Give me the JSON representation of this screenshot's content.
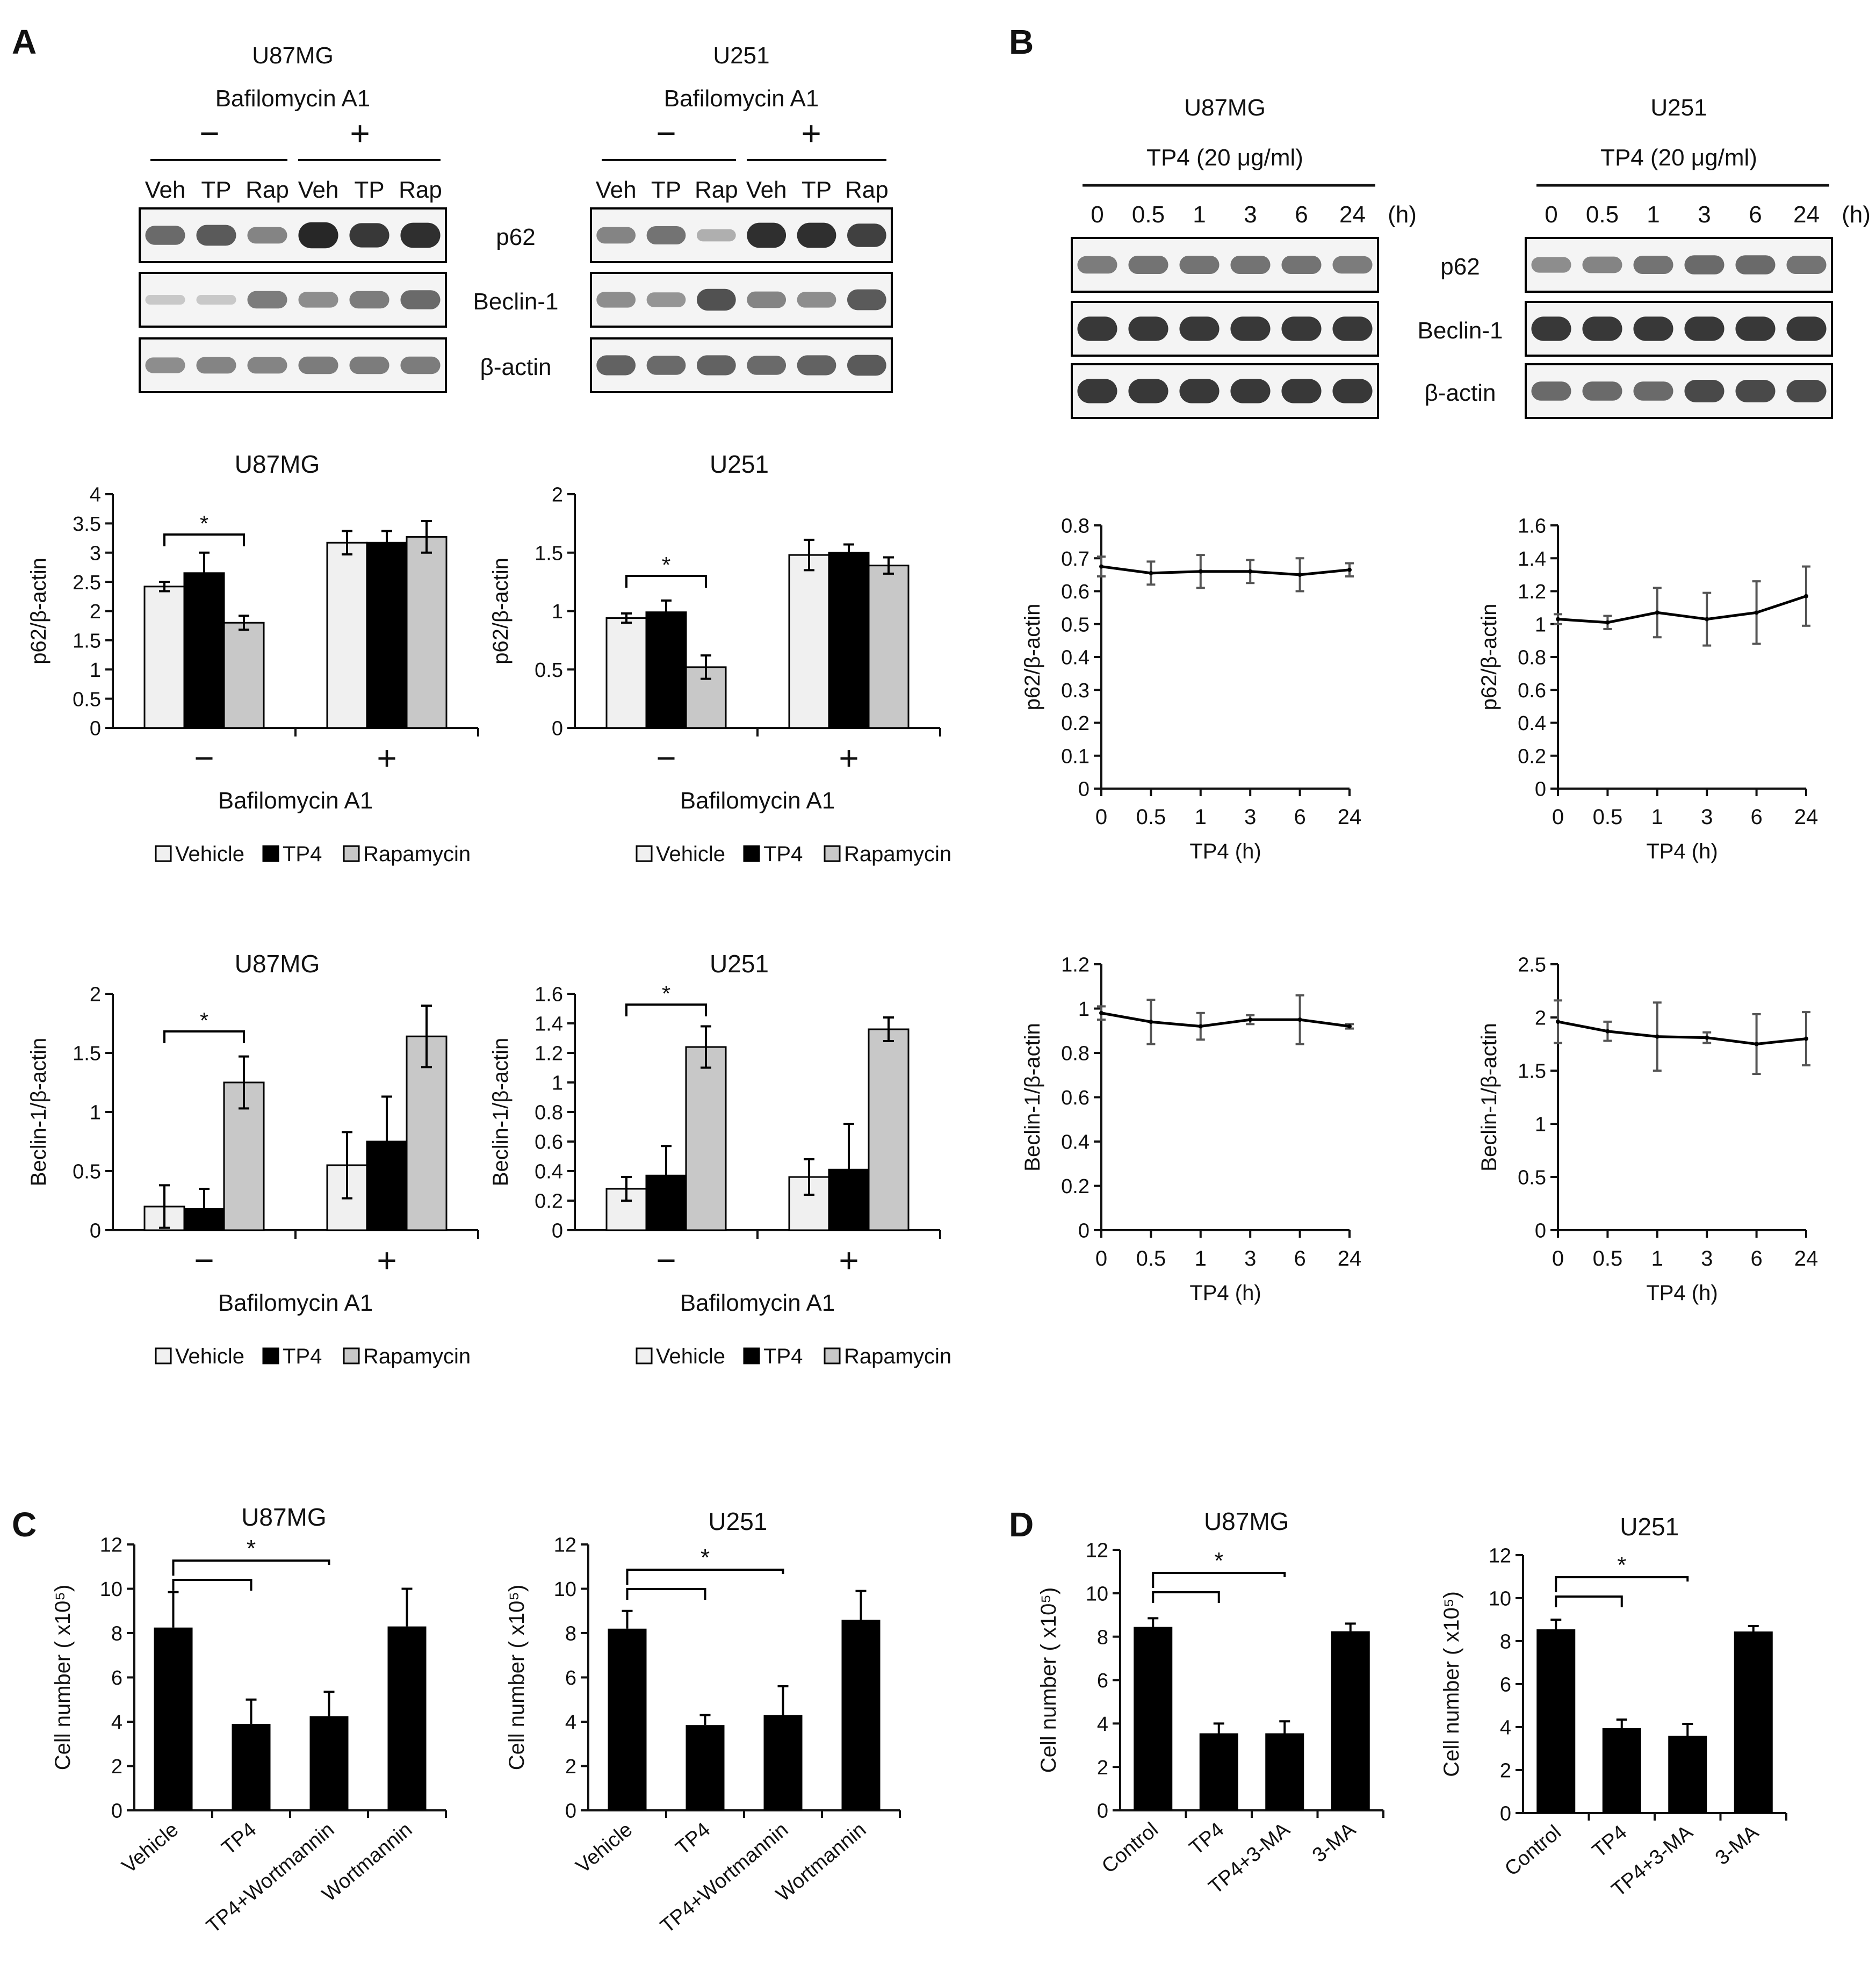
{
  "panel_letters": [
    "A",
    "B",
    "C",
    "D"
  ],
  "blots": {
    "A": [
      {
        "cell": "U87MG",
        "treatment": "Bafilomycin A1",
        "minus": "−",
        "plus": "+",
        "lanes": [
          "Veh",
          "TP",
          "Rap",
          "Veh",
          "TP",
          "Rap"
        ],
        "rows": [
          "p62",
          "Beclin-1",
          "β-actin"
        ]
      },
      {
        "cell": "U251",
        "treatment": "Bafilomycin A1",
        "minus": "−",
        "plus": "+",
        "lanes": [
          "Veh",
          "TP",
          "Rap",
          "Veh",
          "TP",
          "Rap"
        ],
        "rows": []
      }
    ],
    "B": [
      {
        "cell": "U87MG",
        "treatment": "TP4 (20 μg/ml)",
        "lanes": [
          "0",
          "0.5",
          "1",
          "3",
          "6",
          "24"
        ],
        "unit": "(h)",
        "rows": []
      },
      {
        "cell": "U251",
        "treatment": "TP4 (20 μg/ml)",
        "lanes": [
          "0",
          "0.5",
          "1",
          "3",
          "6",
          "24"
        ],
        "unit": "(h)",
        "rows": [
          "p62",
          "Beclin-1",
          "β-actin"
        ]
      }
    ]
  },
  "chart_data": [
    {
      "id": "A1",
      "type": "bar",
      "title": "U87MG",
      "ylabel": "p62/β-actin",
      "xlabel": "Bafilomycin A1",
      "categories": [
        "−",
        "+"
      ],
      "ylim": [
        0,
        4
      ],
      "yticks": [
        "0",
        "0.5",
        "1",
        "1.5",
        "2",
        "2.5",
        "3",
        "3.5",
        "4"
      ],
      "series": [
        {
          "name": "Vehicle",
          "values": [
            2.42,
            3.17
          ],
          "errors": [
            0.08,
            0.2
          ]
        },
        {
          "name": "TP4",
          "values": [
            2.65,
            3.17
          ],
          "errors": [
            0.35,
            0.2
          ]
        },
        {
          "name": "Rapamycin",
          "values": [
            1.8,
            3.27
          ],
          "errors": [
            0.12,
            0.27
          ]
        }
      ],
      "significance": "*",
      "legend": [
        "Vehicle",
        "TP4",
        "Rapamycin"
      ]
    },
    {
      "id": "A2",
      "type": "bar",
      "title": "U251",
      "ylabel": "p62/β-actin",
      "xlabel": "Bafilomycin A1",
      "categories": [
        "−",
        "+"
      ],
      "ylim": [
        0,
        2
      ],
      "yticks": [
        "0",
        "0.5",
        "1",
        "1.5",
        "2"
      ],
      "series": [
        {
          "name": "Vehicle",
          "values": [
            0.94,
            1.48
          ],
          "errors": [
            0.04,
            0.13
          ]
        },
        {
          "name": "TP4",
          "values": [
            0.99,
            1.5
          ],
          "errors": [
            0.1,
            0.07
          ]
        },
        {
          "name": "Rapamycin",
          "values": [
            0.52,
            1.39
          ],
          "errors": [
            0.1,
            0.07
          ]
        }
      ],
      "significance": "*",
      "legend": [
        "Vehicle",
        "TP4",
        "Rapamycin"
      ]
    },
    {
      "id": "A3",
      "type": "bar",
      "title": "U87MG",
      "ylabel": "Beclin-1/β-actin",
      "xlabel": "Bafilomycin A1",
      "categories": [
        "−",
        "+"
      ],
      "ylim": [
        0,
        2
      ],
      "yticks": [
        "0",
        "0.5",
        "1",
        "1.5",
        "2"
      ],
      "series": [
        {
          "name": "Vehicle",
          "values": [
            0.2,
            0.55
          ],
          "errors": [
            0.18,
            0.28
          ]
        },
        {
          "name": "TP4",
          "values": [
            0.18,
            0.75
          ],
          "errors": [
            0.17,
            0.38
          ]
        },
        {
          "name": "Rapamycin",
          "values": [
            1.25,
            1.64
          ],
          "errors": [
            0.22,
            0.26
          ]
        }
      ],
      "significance": "*",
      "legend": [
        "Vehicle",
        "TP4",
        "Rapamycin"
      ]
    },
    {
      "id": "A4",
      "type": "bar",
      "title": "U251",
      "ylabel": "Beclin-1/β-actin",
      "xlabel": "Bafilomycin A1",
      "categories": [
        "−",
        "+"
      ],
      "ylim": [
        0,
        1.6
      ],
      "yticks": [
        "0",
        "0.2",
        "0.4",
        "0.6",
        "0.8",
        "1",
        "1.2",
        "1.4",
        "1.6"
      ],
      "series": [
        {
          "name": "Vehicle",
          "values": [
            0.28,
            0.36
          ],
          "errors": [
            0.08,
            0.12
          ]
        },
        {
          "name": "TP4",
          "values": [
            0.37,
            0.41
          ],
          "errors": [
            0.2,
            0.31
          ]
        },
        {
          "name": "Rapamycin",
          "values": [
            1.24,
            1.36
          ],
          "errors": [
            0.14,
            0.08
          ]
        }
      ],
      "significance": "*",
      "legend": [
        "Vehicle",
        "TP4",
        "Rapamycin"
      ]
    },
    {
      "id": "B1",
      "type": "line",
      "title": "",
      "ylabel": "p62/β-actin",
      "xlabel": "TP4 (h)",
      "x": [
        "0",
        "0.5",
        "1",
        "3",
        "6",
        "24"
      ],
      "ylim": [
        0,
        0.8
      ],
      "yticks": [
        "0",
        "0.1",
        "0.2",
        "0.3",
        "0.4",
        "0.5",
        "0.6",
        "0.7",
        "0.8"
      ],
      "values": [
        0.675,
        0.655,
        0.66,
        0.66,
        0.65,
        0.665
      ],
      "errors": [
        0.03,
        0.035,
        0.05,
        0.035,
        0.05,
        0.02
      ]
    },
    {
      "id": "B2",
      "type": "line",
      "title": "",
      "ylabel": "p62/β-actin",
      "xlabel": "TP4 (h)",
      "x": [
        "0",
        "0.5",
        "1",
        "3",
        "6",
        "24"
      ],
      "ylim": [
        0,
        1.6
      ],
      "yticks": [
        "0",
        "0.2",
        "0.4",
        "0.6",
        "0.8",
        "1",
        "1.2",
        "1.4",
        "1.6"
      ],
      "values": [
        1.03,
        1.01,
        1.07,
        1.03,
        1.07,
        1.17
      ],
      "errors": [
        0.03,
        0.04,
        0.15,
        0.16,
        0.19,
        0.18
      ]
    },
    {
      "id": "B3",
      "type": "line",
      "title": "",
      "ylabel": "Beclin-1/β-actin",
      "xlabel": "TP4 (h)",
      "x": [
        "0",
        "0.5",
        "1",
        "3",
        "6",
        "24"
      ],
      "ylim": [
        0,
        1.2
      ],
      "yticks": [
        "0",
        "0.2",
        "0.4",
        "0.6",
        "0.8",
        "1",
        "1.2"
      ],
      "values": [
        0.98,
        0.94,
        0.92,
        0.95,
        0.95,
        0.92
      ],
      "errors": [
        0.03,
        0.1,
        0.06,
        0.02,
        0.11,
        0.01
      ]
    },
    {
      "id": "B4",
      "type": "line",
      "title": "",
      "ylabel": "Beclin-1/β-actin",
      "xlabel": "TP4 (h)",
      "x": [
        "0",
        "0.5",
        "1",
        "3",
        "6",
        "24"
      ],
      "ylim": [
        0,
        2.5
      ],
      "yticks": [
        "0",
        "0.5",
        "1",
        "1.5",
        "2",
        "2.5"
      ],
      "values": [
        1.96,
        1.87,
        1.82,
        1.81,
        1.75,
        1.8
      ],
      "errors": [
        0.2,
        0.09,
        0.32,
        0.05,
        0.28,
        0.25
      ]
    },
    {
      "id": "C1",
      "type": "bar",
      "title": "U87MG",
      "ylabel": "Cell number ( x10⁵)",
      "categories": [
        "Vehicle",
        "TP4",
        "TP4+Wortmannin",
        "Wortmannin"
      ],
      "ylim": [
        0,
        12
      ],
      "yticks": [
        "0",
        "2",
        "4",
        "6",
        "8",
        "10",
        "12"
      ],
      "values": [
        8.25,
        3.9,
        4.25,
        8.3
      ],
      "errors": [
        1.6,
        1.1,
        1.1,
        1.7
      ],
      "significance": "*"
    },
    {
      "id": "C2",
      "type": "bar",
      "title": "U251",
      "ylabel": "Cell number ( x10⁵)",
      "categories": [
        "Vehicle",
        "TP4",
        "TP4+Wortmannin",
        "Wortmannin"
      ],
      "ylim": [
        0,
        12
      ],
      "yticks": [
        "0",
        "2",
        "4",
        "6",
        "8",
        "10",
        "12"
      ],
      "values": [
        8.2,
        3.85,
        4.3,
        8.6
      ],
      "errors": [
        0.8,
        0.45,
        1.3,
        1.3
      ],
      "significance": "*"
    },
    {
      "id": "D1",
      "type": "bar",
      "title": "U87MG",
      "ylabel": "Cell number ( x10⁵)",
      "categories": [
        "Control",
        "TP4",
        "TP4+3-MA",
        "3-MA"
      ],
      "ylim": [
        0,
        12
      ],
      "yticks": [
        "0",
        "2",
        "4",
        "6",
        "8",
        "10",
        "12"
      ],
      "values": [
        8.45,
        3.55,
        3.55,
        8.25
      ],
      "errors": [
        0.4,
        0.45,
        0.55,
        0.35
      ],
      "significance": "*"
    },
    {
      "id": "D2",
      "type": "bar",
      "title": "U251",
      "ylabel": "Cell number ( x10⁵)",
      "categories": [
        "Control",
        "TP4",
        "TP4+3-MA",
        "3-MA"
      ],
      "ylim": [
        0,
        12
      ],
      "yticks": [
        "0",
        "2",
        "4",
        "6",
        "8",
        "10",
        "12"
      ],
      "values": [
        8.55,
        3.95,
        3.6,
        8.45
      ],
      "errors": [
        0.45,
        0.4,
        0.55,
        0.25
      ],
      "significance": "*"
    }
  ],
  "colors": {
    "vehicle": "#f0f0f0",
    "tp4": "#000000",
    "rapamycin": "#c8c8c8",
    "bar_black": "#000000",
    "axis": "#111111"
  }
}
